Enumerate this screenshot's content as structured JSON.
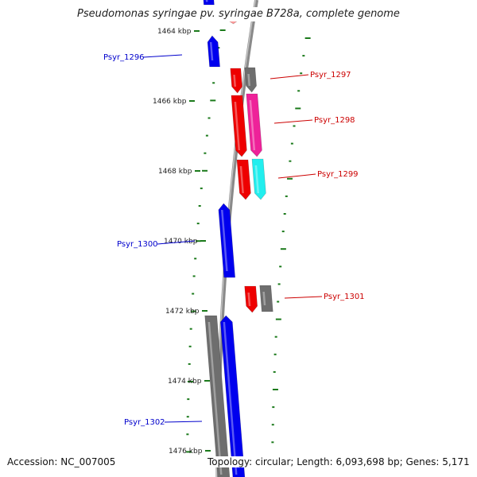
{
  "title": "Pseudomonas syringae pv. syringae B728a, complete genome",
  "footer": {
    "accession": "Accession: NC_007005",
    "summary": "Topology: circular; Length: 6,093,698 bp; Genes: 5,171"
  },
  "axis_labels": [
    "1464 kbp",
    "1466 kbp",
    "1468 kbp",
    "1470 kbp",
    "1472 kbp",
    "1474 kbp",
    "1476 kbp"
  ],
  "colors": {
    "backbone": "#8a8a8a",
    "tick": "#1b7a1b",
    "forward_label": "#0000cc",
    "reverse_label": "#cc0000",
    "blue_gene": "#0000ee",
    "red_gene": "#ee0000",
    "grey_gene": "#6e6e6e",
    "pink_gene": "#ee2299",
    "cyan_gene": "#22eeee"
  },
  "gene_labels": [
    {
      "text": "Psyr_1296",
      "strand": "forward"
    },
    {
      "text": "Psyr_1297",
      "strand": "reverse"
    },
    {
      "text": "Psyr_1298",
      "strand": "reverse"
    },
    {
      "text": "Psyr_1299",
      "strand": "reverse"
    },
    {
      "text": "Psyr_1300",
      "strand": "forward"
    },
    {
      "text": "Psyr_1301",
      "strand": "reverse"
    },
    {
      "text": "Psyr_1302",
      "strand": "forward"
    }
  ]
}
